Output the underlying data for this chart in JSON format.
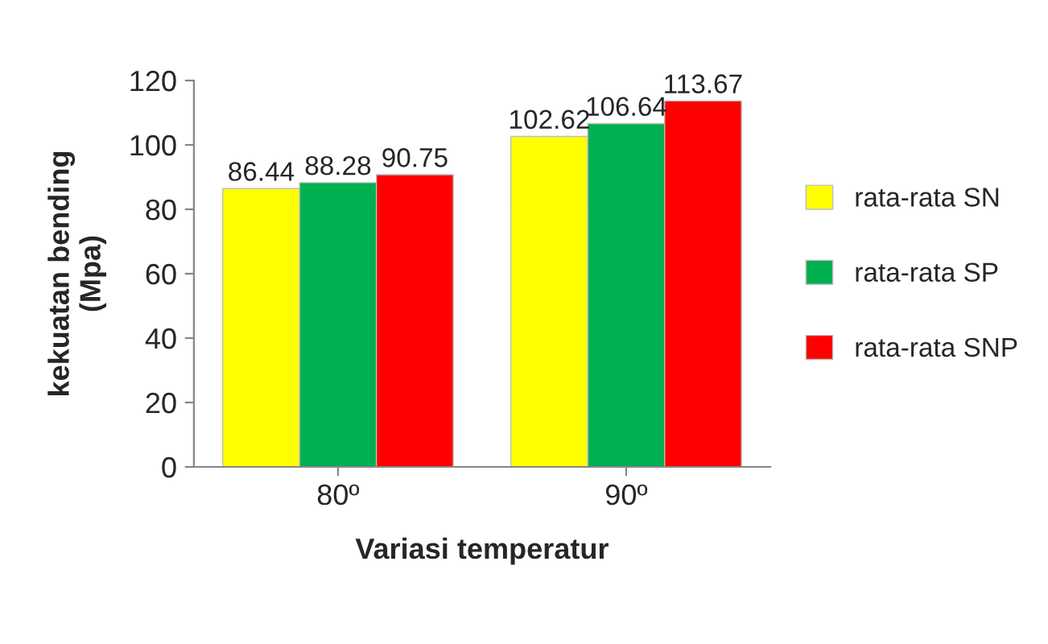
{
  "chart_data": {
    "type": "bar",
    "xlabel": "Variasi temperatur",
    "ylabel": "kekuatan bending\n(Mpa)",
    "categories": [
      "80º",
      "90º"
    ],
    "series": [
      {
        "name": "rata-rata SN",
        "color": "#ffff00",
        "values": [
          86.44,
          102.62
        ]
      },
      {
        "name": "rata-rata SP",
        "color": "#00b050",
        "values": [
          88.28,
          106.64
        ]
      },
      {
        "name": "rata-rata SNP",
        "color": "#ff0000",
        "values": [
          90.75,
          113.67
        ]
      }
    ],
    "ylim": [
      0,
      120
    ],
    "yticks": [
      0,
      20,
      40,
      60,
      80,
      100,
      120
    ],
    "data_labels": true,
    "grid": false,
    "legend": "right"
  }
}
